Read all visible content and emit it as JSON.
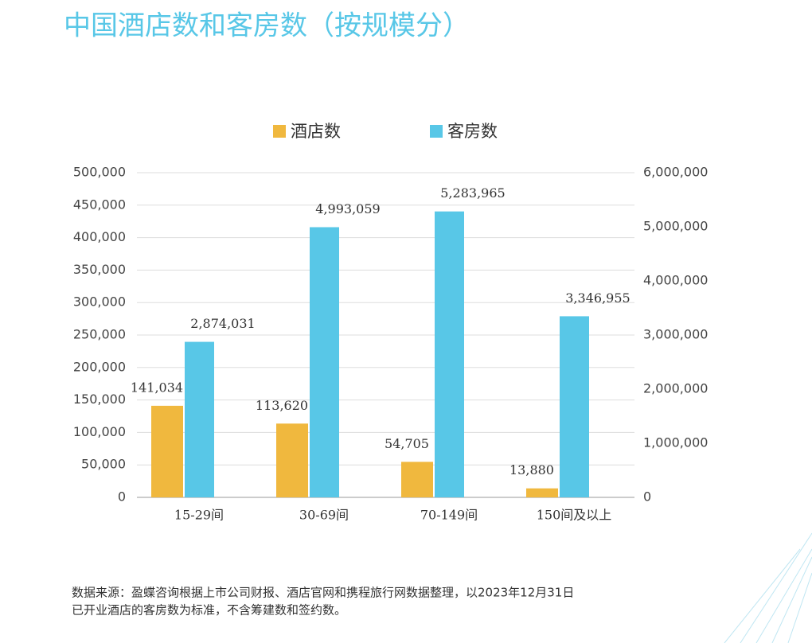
{
  "chart_data": {
    "type": "bar",
    "title": "中国酒店数和客房数（按规模分）",
    "categories": [
      "15-29间",
      "30-69间",
      "70-149间",
      "150间及以上"
    ],
    "series": [
      {
        "name": "酒店数",
        "color": "#f0b83e",
        "values": [
          141034,
          113620,
          54705,
          13880
        ],
        "value_labels": [
          "141,034",
          "113,620",
          "54,705",
          "13,880"
        ]
      },
      {
        "name": "客房数",
        "color": "#58c7e7",
        "axis": "y2",
        "values": [
          2874031,
          4993059,
          5283965,
          3346955
        ],
        "value_labels": [
          "2,874,031",
          "4,993,059",
          "5,283,965",
          "3,346,955"
        ]
      }
    ],
    "ylim": [
      0,
      500000
    ],
    "yticks": [
      0,
      {
        "value": 50000,
        "label": "50,000"
      },
      {
        "value": 100000,
        "label": "100,000"
      },
      {
        "value": 150000,
        "label": "150,000"
      },
      {
        "value": 200000,
        "label": "200,000"
      },
      {
        "value": 250000,
        "label": "250,000"
      },
      {
        "value": 300000,
        "label": "300,000"
      },
      {
        "value": 350000,
        "label": "350,000"
      },
      {
        "value": 400000,
        "label": "400,000"
      },
      {
        "value": 450000,
        "label": "450,000"
      },
      {
        "value": 500000,
        "label": "500,000"
      }
    ],
    "y2lim": [
      0,
      6000000
    ],
    "y2ticks": [
      0,
      {
        "value": 1000000,
        "label": "1,000,000"
      },
      {
        "value": 2000000,
        "label": "2,000,000"
      },
      {
        "value": 3000000,
        "label": "3,000,000"
      },
      {
        "value": 4000000,
        "label": "4,000,000"
      },
      {
        "value": 5000000,
        "label": "5,000,000"
      },
      {
        "value": 6000000,
        "label": "6,000,000"
      }
    ],
    "grid": true,
    "source": [
      "数据来源：盈蝶咨询根据上市公司财报、酒店官网和携程旅行网数据整理，以2023年12月31日",
      "已开业酒店的客房数为标准，不含筹建数和签约数。"
    ]
  }
}
